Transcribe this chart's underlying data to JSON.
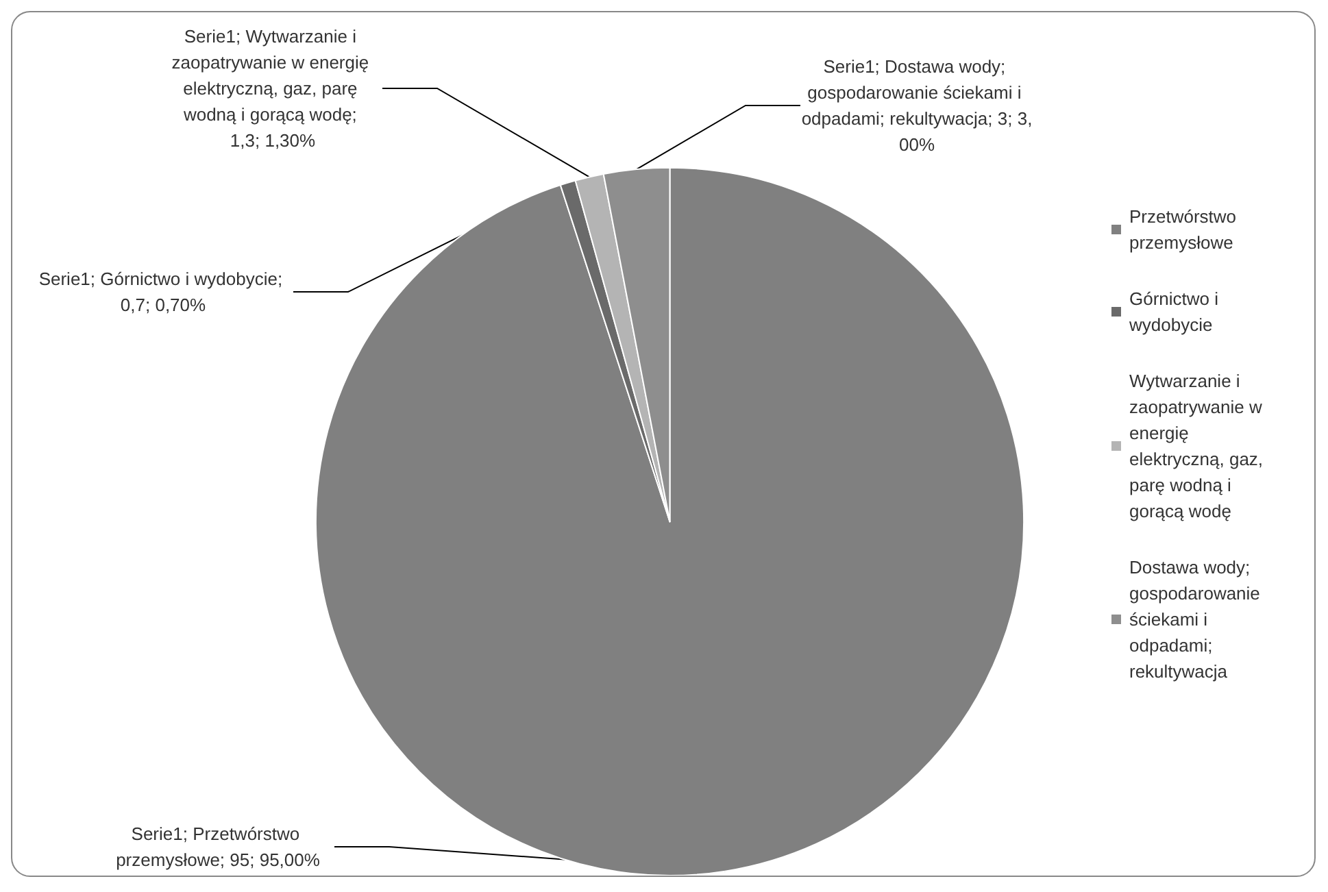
{
  "chart_data": {
    "type": "pie",
    "categories": [
      "Przetwórstwo przemysłowe",
      "Górnictwo i wydobycie",
      "Wytwarzanie i zaopatrywanie w energię elektryczną, gaz, parę wodną i gorącą wodę",
      "Dostawa wody; gospodarowanie ściekami i odpadami; rekultywacja"
    ],
    "values": [
      95,
      0.7,
      1.3,
      3
    ],
    "colors": [
      "#808080",
      "#6a6a6a",
      "#b4b4b4",
      "#8e8e8e"
    ],
    "value_labels": [
      "Serie1; Przetwórstwo przemysłowe; 95; 95,00%",
      "Serie1; Górnictwo i wydobycie; 0,7; 0,70%",
      "Serie1; Wytwarzanie i zaopatrywanie w energię elektryczną, gaz, parę wodną i gorącą wodę; 1,3; 1,30%",
      "Serie1; Dostawa wody; gospodarowanie ściekami i odpadami; rekultywacja; 3; 3,00%"
    ],
    "legend": "right"
  }
}
